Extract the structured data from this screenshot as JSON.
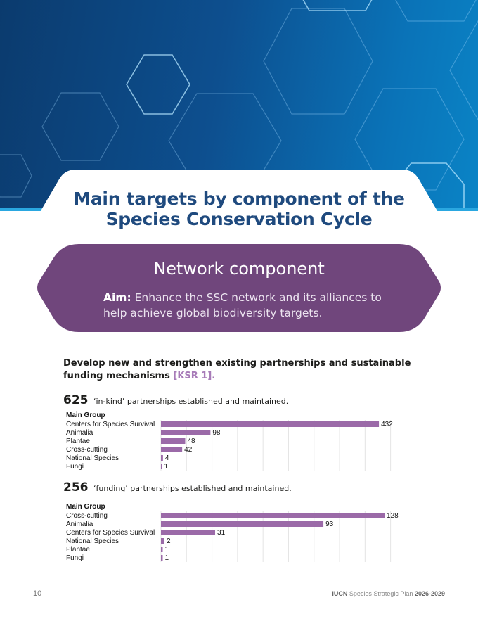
{
  "header": {
    "title_line1": "Main targets by component of the",
    "title_line2": "Species Conservation Cycle"
  },
  "component": {
    "title": "Network component",
    "aim_label": "Aim:",
    "aim_text": "Enhance the SSC network and its alliances to help achieve global biodiversity targets."
  },
  "intro": {
    "text": "Develop new and strengthen existing partnerships and sustainable funding mechanisms",
    "ksr": "[KSR 1]."
  },
  "stats": [
    {
      "number": "625",
      "text": "‘in-kind’ partnerships established and maintained."
    },
    {
      "number": "256",
      "text": "‘funding’ partnerships established and maintained."
    }
  ],
  "chart_data": [
    {
      "type": "bar",
      "orientation": "horizontal",
      "header": "Main Group",
      "categories": [
        "Centers for Species Survival",
        "Animalia",
        "Plantae",
        "Cross-cutting",
        "National Species",
        "Fungi"
      ],
      "values": [
        432,
        98,
        48,
        42,
        4,
        1
      ],
      "xlim": [
        0,
        450
      ],
      "grid": true,
      "bar_color": "#9b6aa8"
    },
    {
      "type": "bar",
      "orientation": "horizontal",
      "header": "Main Group",
      "categories": [
        "Cross-cutting",
        "Animalia",
        "Centers for Species Survival",
        "National Species",
        "Plantae",
        "Fungi"
      ],
      "values": [
        128,
        93,
        31,
        2,
        1,
        1
      ],
      "xlim": [
        0,
        130
      ],
      "grid": true,
      "bar_color": "#9b6aa8"
    }
  ],
  "footer": {
    "page_number": "10",
    "brand": "IUCN",
    "doc": "Species Strategic Plan",
    "years": "2026-2029"
  },
  "colors": {
    "banner": "#0d4f8f",
    "title": "#1f4a7e",
    "component_bg": "#70467c",
    "accent": "#a77bb8"
  }
}
